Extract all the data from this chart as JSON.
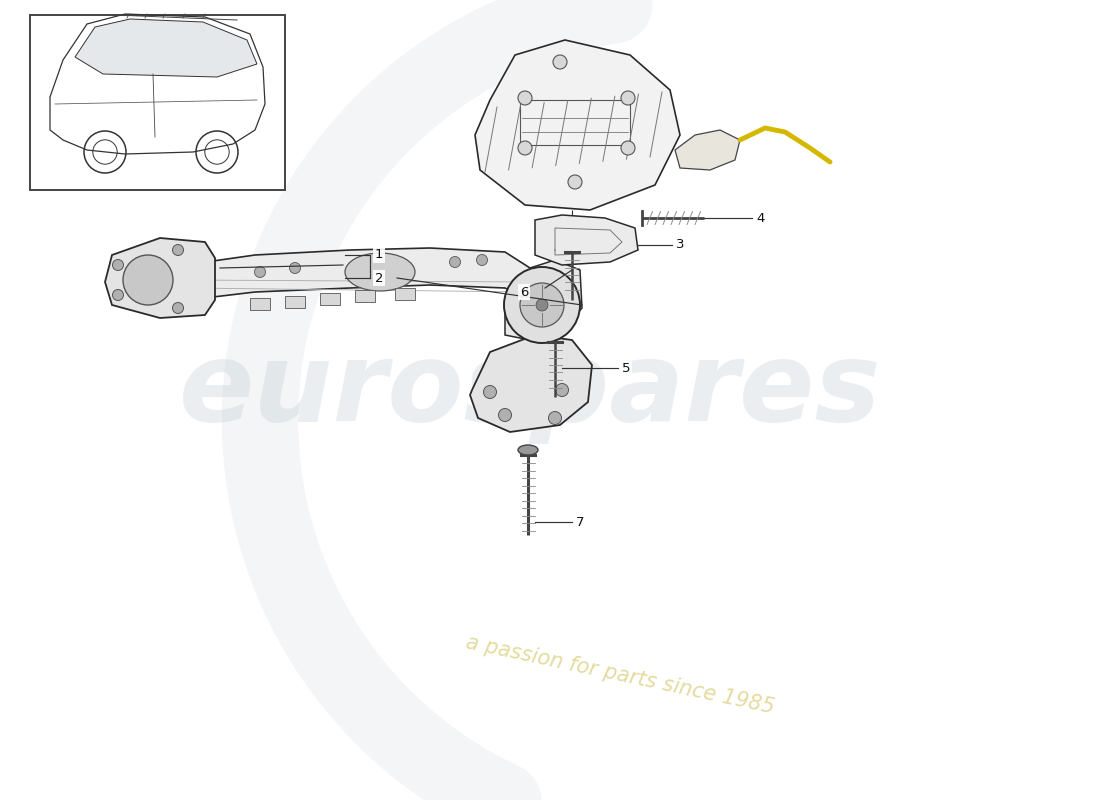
{
  "bg": "#ffffff",
  "lc": "#2a2a2a",
  "wm1": "eurospares",
  "wm1_color": "#b8c5ce",
  "wm1_alpha": 0.28,
  "wm2": "a passion for parts since 1985",
  "wm2_color": "#c8b840",
  "wm2_alpha": 0.5,
  "cable_color": "#d4b800",
  "fig_w": 11.0,
  "fig_h": 8.0,
  "dpi": 100
}
